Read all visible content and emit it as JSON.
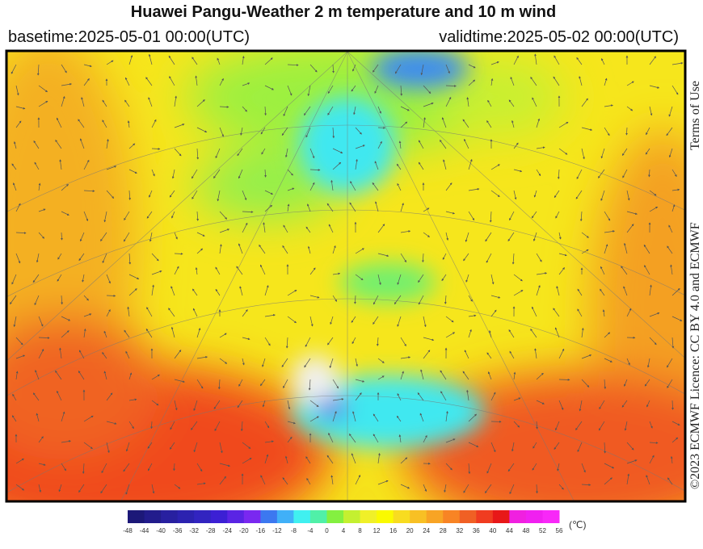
{
  "header": {
    "title": "Huawei Pangu-Weather  2 m temperature and 10 m wind",
    "basetime": "basetime:2025-05-01 00:00(UTC)",
    "validtime": "validtime:2025-05-02 00:00(UTC)"
  },
  "colorbar": {
    "ticks": [
      -48,
      -44,
      -40,
      -36,
      -32,
      -28,
      -24,
      -20,
      -16,
      -12,
      -8,
      -4,
      0,
      4,
      8,
      12,
      16,
      20,
      24,
      28,
      32,
      36,
      40,
      44,
      48,
      52,
      56
    ],
    "colors": [
      "#1c1878",
      "#221c8c",
      "#2820a0",
      "#2c22b0",
      "#3224c0",
      "#3c20d4",
      "#5a24e4",
      "#7a28f0",
      "#3c78f0",
      "#40b0f8",
      "#40f0f0",
      "#50f0a8",
      "#84f040",
      "#c4f030",
      "#f0f028",
      "#fafa00",
      "#f8dc20",
      "#f8c024",
      "#f8a424",
      "#f88424",
      "#f06024",
      "#f03c20",
      "#e81818",
      "#f020e0",
      "#f020f0",
      "#f828f8"
    ],
    "unit": "(℃)"
  },
  "credit": {
    "licence": "©2023 ECMWF Licence: CC BY 4.0 and ECMWF",
    "terms": "Terms of Use"
  }
}
